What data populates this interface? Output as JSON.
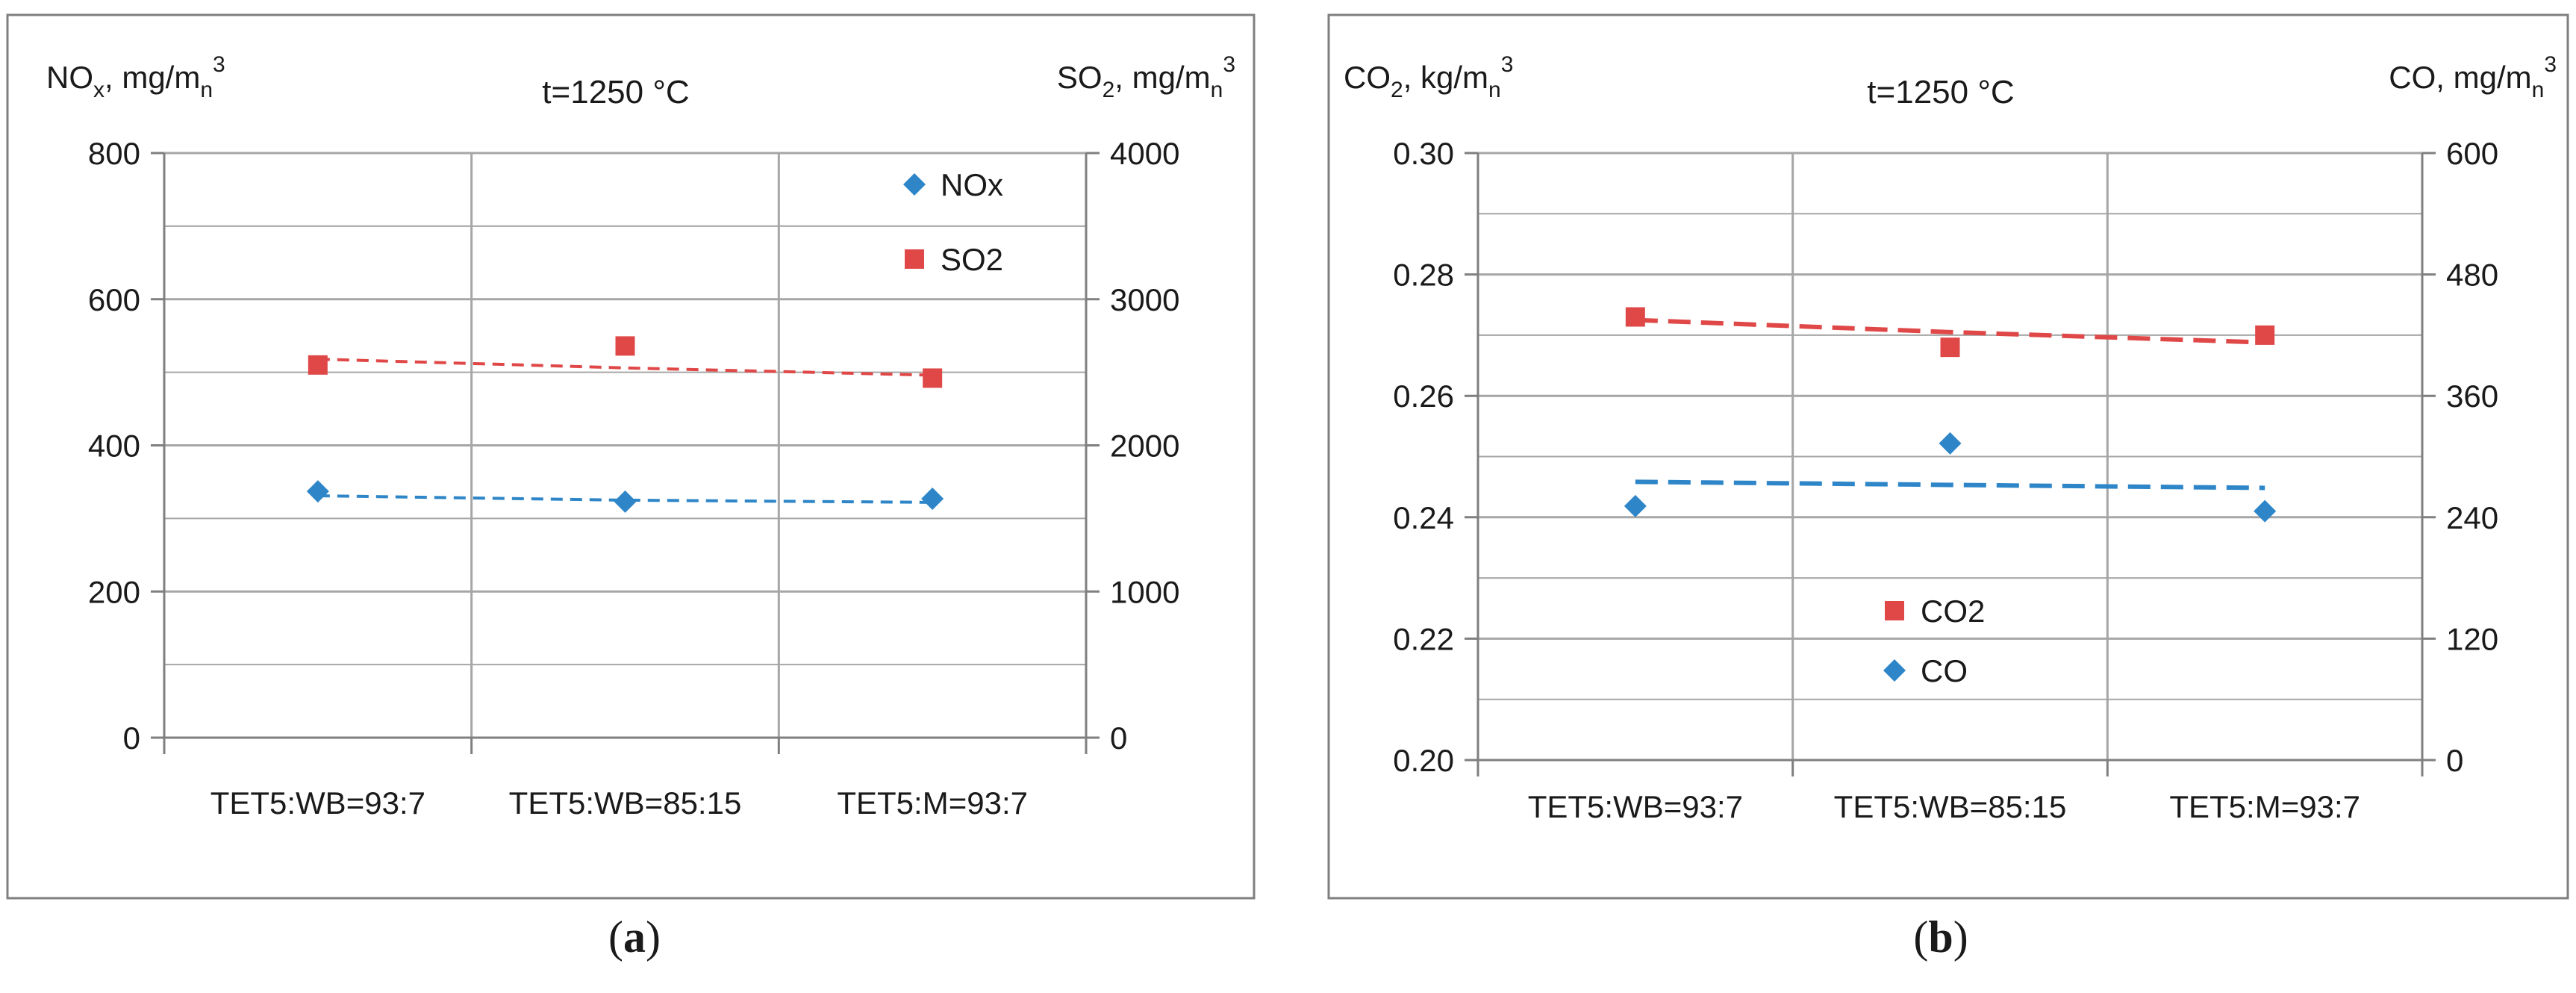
{
  "chart_data": [
    {
      "type": "scatter",
      "panel_label": "(a)",
      "title": "t=1250 °C",
      "y_left_label": {
        "main": "NO",
        "sub": "x",
        "rest": ", mg/m",
        "sub2": "n",
        "sup": "3"
      },
      "y_right_label": {
        "main": "SO",
        "sub": "2",
        "rest": ", mg/m",
        "sub2": "n",
        "sup": "3"
      },
      "categories": [
        "TET5:WB=93:7",
        "TET5:WB=85:15",
        "TET5:M=93:7"
      ],
      "y_left": {
        "min": 0,
        "max": 800,
        "ticks": [
          "0",
          "200",
          "400",
          "600",
          "800"
        ]
      },
      "y_right": {
        "min": 0,
        "max": 4000,
        "ticks": [
          "0",
          "1000",
          "2000",
          "3000",
          "4000"
        ]
      },
      "series": [
        {
          "name": "NOx",
          "axis": "left",
          "marker": "diamond",
          "color": "#2e86c8",
          "values": [
            337,
            323,
            327
          ],
          "trend": [
            331,
            325,
            322
          ]
        },
        {
          "name": "SO2",
          "axis": "right",
          "marker": "square",
          "color": "#e04848",
          "values": [
            2550,
            2680,
            2460
          ],
          "trend": [
            2590,
            2530,
            2480
          ]
        }
      ]
    },
    {
      "type": "scatter",
      "panel_label": "(b)",
      "title": "t=1250 °C",
      "y_left_label": {
        "main": "CO",
        "sub": "2",
        "rest": ", kg/m",
        "sub2": "n",
        "sup": "3"
      },
      "y_right_label": {
        "main": "CO",
        "sub": "",
        "rest": ", mg/m",
        "sub2": "n",
        "sup": "3"
      },
      "categories": [
        "TET5:WB=93:7",
        "TET5:WB=85:15",
        "TET5:M=93:7"
      ],
      "y_left": {
        "min": 0.2,
        "max": 0.3,
        "ticks": [
          "0.20",
          "0.22",
          "0.24",
          "0.26",
          "0.28",
          "0.30"
        ]
      },
      "y_right": {
        "min": 0,
        "max": 600,
        "ticks": [
          "0",
          "120",
          "240",
          "360",
          "480",
          "600"
        ]
      },
      "series": [
        {
          "name": "CO2",
          "axis": "left",
          "marker": "square",
          "color": "#e04848",
          "values": [
            0.273,
            0.268,
            0.27
          ],
          "trend": [
            0.2725,
            0.2705,
            0.2688
          ]
        },
        {
          "name": "CO",
          "axis": "right",
          "marker": "diamond",
          "color": "#2e86c8",
          "values": [
            251,
            313,
            246
          ],
          "trend": [
            275,
            272,
            269
          ]
        }
      ]
    }
  ]
}
